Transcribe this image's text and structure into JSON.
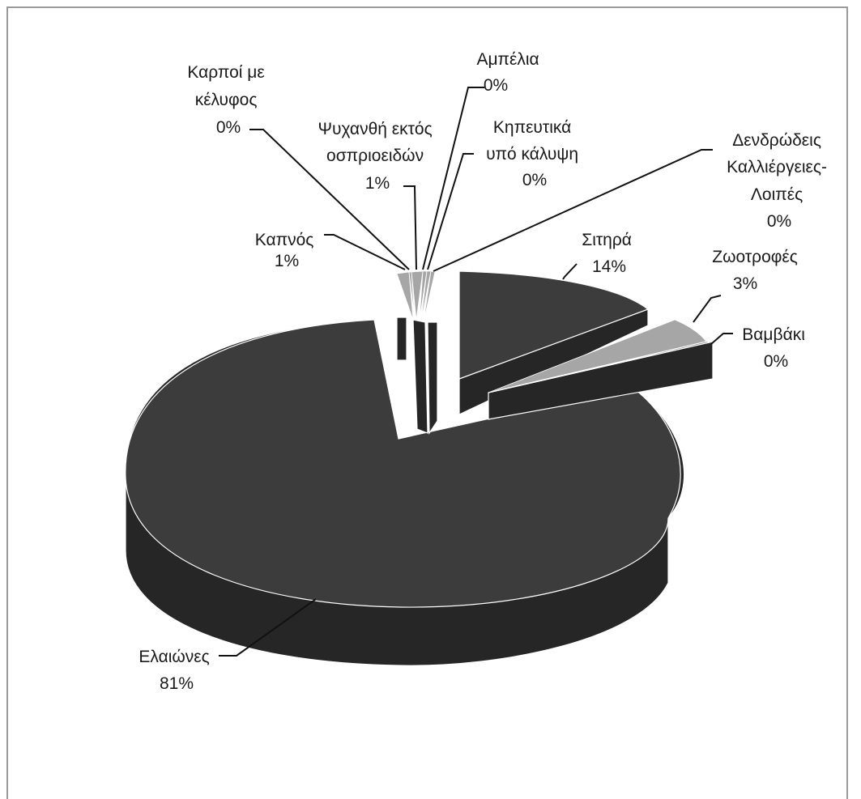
{
  "chart_data": {
    "type": "pie",
    "three_d": true,
    "exploded": true,
    "title": "",
    "slices": [
      {
        "key": "olive",
        "label_lines": [
          "Ελαιώνες"
        ],
        "value": 81,
        "pct_text": "81%"
      },
      {
        "key": "tobacco",
        "label_lines": [
          "Καπνός"
        ],
        "value": 1,
        "pct_text": "1%"
      },
      {
        "key": "nuts",
        "label_lines": [
          "Καρποί με",
          "κέλυφος"
        ],
        "value": 0,
        "pct_text": "0%"
      },
      {
        "key": "legumes",
        "label_lines": [
          "Ψυχανθή  εκτός",
          "οσπριοειδών"
        ],
        "value": 1,
        "pct_text": "1%"
      },
      {
        "key": "vines",
        "label_lines": [
          "Αμπέλια"
        ],
        "value": 0,
        "pct_text": "0%"
      },
      {
        "key": "greenhouse",
        "label_lines": [
          "Κηπευτικά",
          "υπό κάλυψη"
        ],
        "value": 0,
        "pct_text": "0%"
      },
      {
        "key": "trees",
        "label_lines": [
          "Δενδρώδεις",
          "Καλλιέργειες-",
          "Λοιπές"
        ],
        "value": 0,
        "pct_text": "0%"
      },
      {
        "key": "cereals",
        "label_lines": [
          "Σιτηρά"
        ],
        "value": 14,
        "pct_text": "14%"
      },
      {
        "key": "fodder",
        "label_lines": [
          "Ζωοτροφές"
        ],
        "value": 3,
        "pct_text": "3%"
      },
      {
        "key": "cotton",
        "label_lines": [
          "Βαμβάκι"
        ],
        "value": 0,
        "pct_text": "0%"
      }
    ],
    "colors": {
      "dark_top": "#3c3c3c",
      "dark_side": "#262626",
      "light_top": "#a6a6a6",
      "light_side": "#7d7d7d",
      "edge": "#ffffff",
      "leader": "#111111"
    }
  }
}
